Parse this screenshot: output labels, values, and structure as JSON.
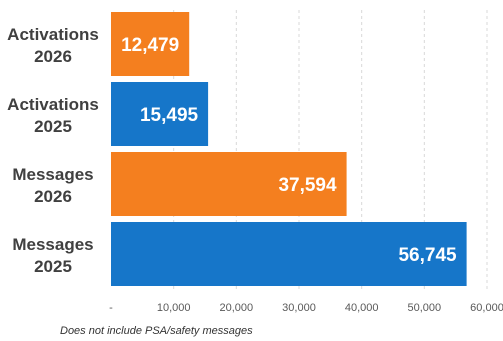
{
  "chart_data": {
    "type": "bar",
    "orientation": "horizontal",
    "categories": [
      [
        "Activations",
        "2026"
      ],
      [
        "Activations",
        "2025"
      ],
      [
        "Messages",
        "2026"
      ],
      [
        "Messages",
        "2025"
      ]
    ],
    "values": [
      12479,
      15495,
      37594,
      56745
    ],
    "value_labels": [
      "12,479",
      "15,495",
      "37,594",
      "56,745"
    ],
    "bar_colors": [
      "#f47f1f",
      "#1676c9",
      "#f47f1f",
      "#1676c9"
    ],
    "xlim": [
      0,
      60000
    ],
    "x_ticks": [
      0,
      10000,
      20000,
      30000,
      40000,
      50000,
      60000
    ],
    "x_tick_labels": [
      "-",
      "10,000",
      "20,000",
      "30,000",
      "40,000",
      "50,000",
      "60,000"
    ],
    "grid": "vertical-dashed",
    "legend": "none"
  },
  "footnote": "Does not include PSA/safety messages"
}
